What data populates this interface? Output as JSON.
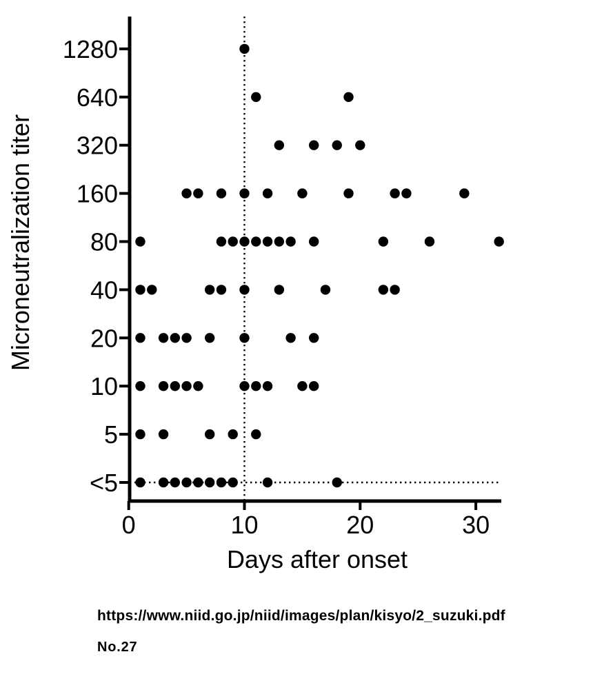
{
  "chart_data": {
    "type": "scatter",
    "title": "",
    "xlabel": "Days after onset",
    "ylabel": "Microneutralization titer",
    "x_ticks": [
      "0",
      "10",
      "20",
      "30"
    ],
    "xlim": [
      0,
      32.5
    ],
    "y_levels": [
      "<5",
      "5",
      "10",
      "20",
      "40",
      "80",
      "160",
      "320",
      "640",
      "1280"
    ],
    "grid": false,
    "legend": "none",
    "dot_color": "#000000",
    "reference_lines": {
      "vertical_dotted_at_day": 10,
      "horizontal_dotted_at_titer": "<5"
    },
    "points": [
      {
        "titer": "<5",
        "days": [
          1,
          3,
          4,
          5,
          6,
          7,
          8,
          9,
          12,
          18
        ]
      },
      {
        "titer": "5",
        "days": [
          1,
          3,
          7,
          9,
          11
        ]
      },
      {
        "titer": "10",
        "days": [
          1,
          3,
          4,
          5,
          6,
          10,
          11,
          12,
          15,
          16
        ]
      },
      {
        "titer": "20",
        "days": [
          1,
          3,
          4,
          5,
          7,
          10,
          14,
          16
        ]
      },
      {
        "titer": "40",
        "days": [
          1,
          2,
          7,
          8,
          10,
          13,
          17,
          22,
          23
        ]
      },
      {
        "titer": "80",
        "days": [
          1,
          8,
          9,
          10,
          11,
          12,
          13,
          14,
          16,
          22,
          26,
          32
        ]
      },
      {
        "titer": "160",
        "days": [
          5,
          6,
          8,
          10,
          12,
          15,
          19,
          23,
          24,
          29
        ]
      },
      {
        "titer": "320",
        "days": [
          13,
          16,
          18,
          20
        ]
      },
      {
        "titer": "640",
        "days": [
          11,
          19
        ]
      },
      {
        "titer": "1280",
        "days": [
          10
        ]
      }
    ]
  },
  "footer": {
    "source_url": "https://www.niid.go.jp/niid/images/plan/kisyo/2_suzuki.pdf",
    "page_number": "No.27"
  }
}
